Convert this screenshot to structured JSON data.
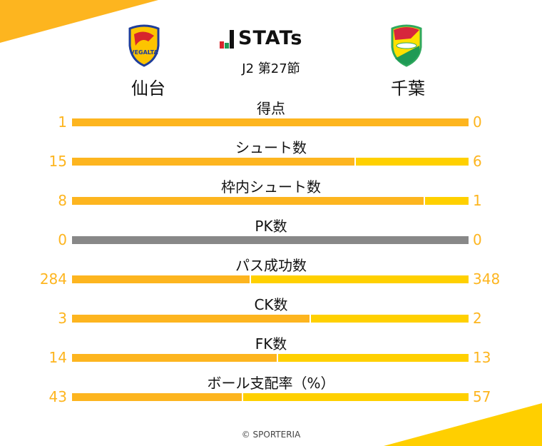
{
  "header": {
    "brand": "STATs",
    "round": "J2 第27節",
    "home_team": "仙台",
    "away_team": "千葉",
    "home_logo": "vegalta-sendai-crest",
    "away_logo": "jef-united-chiba-crest"
  },
  "colors": {
    "home": "#FDB51F",
    "away": "#FFD000",
    "neutral": "#888888"
  },
  "stats": [
    {
      "label": "得点",
      "home": 1,
      "away": 0
    },
    {
      "label": "シュート数",
      "home": 15,
      "away": 6
    },
    {
      "label": "枠内シュート数",
      "home": 8,
      "away": 1
    },
    {
      "label": "PK数",
      "home": 0,
      "away": 0
    },
    {
      "label": "パス成功数",
      "home": 284,
      "away": 348
    },
    {
      "label": "CK数",
      "home": 3,
      "away": 2
    },
    {
      "label": "FK数",
      "home": 14,
      "away": 13
    },
    {
      "label": "ボール支配率（%）",
      "home": 43,
      "away": 57
    }
  ],
  "footer": {
    "copyright": "© SPORTERIA"
  }
}
